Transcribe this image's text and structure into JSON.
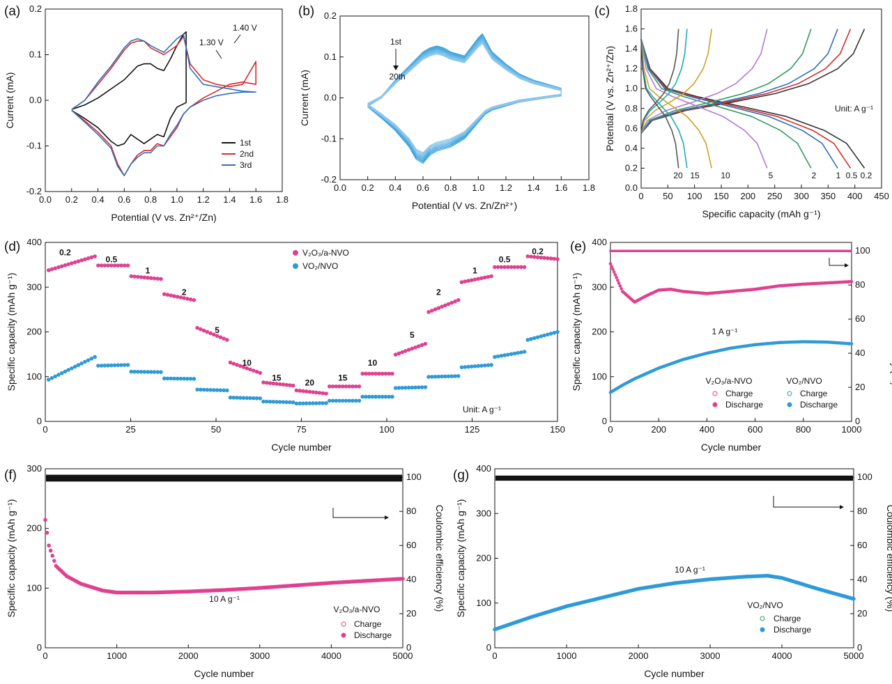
{
  "chart_data": [
    {
      "panel": "(a)",
      "type": "line",
      "xlabel": "Potential (V vs. Zn²⁺/Zn)",
      "ylabel": "Current (mA)",
      "xlim": [
        0.0,
        1.8
      ],
      "ylim": [
        -0.2,
        0.2
      ],
      "xticks": [
        "0.0",
        "0.2",
        "0.4",
        "0.6",
        "0.8",
        "1.0",
        "1.2",
        "1.4",
        "1.6",
        "1.8"
      ],
      "yticks": [
        "-0.2",
        "-0.1",
        "0.0",
        "0.1",
        "0.2"
      ],
      "legend_position": "bottom-right",
      "annotations": [
        "1.30 V",
        "1.40 V"
      ],
      "series": [
        {
          "name": "1st",
          "color": "#111111",
          "x": [
            0.2,
            0.3,
            0.4,
            0.5,
            0.6,
            0.65,
            0.7,
            0.75,
            0.8,
            0.85,
            0.9,
            0.95,
            1.0,
            1.05,
            1.07,
            1.07,
            1.0,
            0.95,
            0.9,
            0.85,
            0.8,
            0.75,
            0.7,
            0.65,
            0.6,
            0.55,
            0.5,
            0.4,
            0.3,
            0.2
          ],
          "y": [
            -0.02,
            -0.01,
            0.005,
            0.025,
            0.045,
            0.06,
            0.075,
            0.08,
            0.08,
            0.07,
            0.065,
            0.09,
            0.12,
            0.145,
            0.15,
            -0.005,
            -0.015,
            -0.04,
            -0.08,
            -0.075,
            -0.085,
            -0.095,
            -0.085,
            -0.075,
            -0.095,
            -0.1,
            -0.09,
            -0.06,
            -0.04,
            -0.022
          ]
        },
        {
          "name": "2nd",
          "color": "#d42a2a",
          "x": [
            0.2,
            0.3,
            0.4,
            0.5,
            0.6,
            0.65,
            0.7,
            0.75,
            0.8,
            0.9,
            1.0,
            1.05,
            1.1,
            1.2,
            1.3,
            1.4,
            1.5,
            1.6,
            1.6,
            1.5,
            1.4,
            1.3,
            1.2,
            1.1,
            1.05,
            1.0,
            0.95,
            0.9,
            0.85,
            0.8,
            0.75,
            0.7,
            0.65,
            0.6,
            0.55,
            0.5,
            0.4,
            0.3,
            0.2
          ],
          "y": [
            -0.02,
            0.0,
            0.035,
            0.07,
            0.11,
            0.125,
            0.13,
            0.13,
            0.115,
            0.1,
            0.12,
            0.14,
            0.08,
            0.045,
            0.035,
            0.03,
            0.035,
            0.085,
            0.035,
            0.04,
            0.035,
            0.02,
            0.005,
            -0.015,
            -0.03,
            -0.06,
            -0.08,
            -0.1,
            -0.095,
            -0.11,
            -0.11,
            -0.12,
            -0.14,
            -0.165,
            -0.14,
            -0.1,
            -0.07,
            -0.045,
            -0.022
          ]
        },
        {
          "name": "3rd",
          "color": "#2f6fb8",
          "x": [
            0.2,
            0.3,
            0.4,
            0.5,
            0.6,
            0.65,
            0.7,
            0.75,
            0.8,
            0.9,
            1.0,
            1.05,
            1.1,
            1.2,
            1.3,
            1.4,
            1.5,
            1.6,
            1.6,
            1.5,
            1.4,
            1.3,
            1.2,
            1.1,
            1.05,
            1.0,
            0.95,
            0.9,
            0.85,
            0.8,
            0.75,
            0.7,
            0.65,
            0.6,
            0.55,
            0.5,
            0.4,
            0.3,
            0.2
          ],
          "y": [
            -0.02,
            0.0,
            0.04,
            0.075,
            0.115,
            0.13,
            0.135,
            0.13,
            0.12,
            0.105,
            0.135,
            0.145,
            0.07,
            0.035,
            0.03,
            0.025,
            0.02,
            0.018,
            0.018,
            0.018,
            0.015,
            0.01,
            0.0,
            -0.015,
            -0.03,
            -0.055,
            -0.075,
            -0.1,
            -0.1,
            -0.115,
            -0.115,
            -0.125,
            -0.14,
            -0.165,
            -0.145,
            -0.105,
            -0.075,
            -0.048,
            -0.022
          ]
        }
      ]
    },
    {
      "panel": "(b)",
      "type": "line",
      "xlabel": "Potential (V vs. Zn/Zn²⁺)",
      "ylabel": "Current (mA)",
      "xlim": [
        0.0,
        1.8
      ],
      "ylim": [
        -0.2,
        0.2
      ],
      "xticks": [
        "0.0",
        "0.2",
        "0.4",
        "0.6",
        "0.8",
        "1.0",
        "1.2",
        "1.4",
        "1.6",
        "1.8"
      ],
      "yticks": [
        "-0.2",
        "-0.1",
        "0.0",
        "0.1",
        "0.2"
      ],
      "annotations": [
        "1st",
        "20th"
      ],
      "series_description": "20 overlapping CV cycles, light blue shades",
      "base_loop": {
        "x": [
          0.2,
          0.3,
          0.4,
          0.5,
          0.6,
          0.65,
          0.7,
          0.75,
          0.8,
          0.9,
          1.0,
          1.03,
          1.1,
          1.2,
          1.3,
          1.4,
          1.5,
          1.6,
          1.6,
          1.5,
          1.4,
          1.3,
          1.2,
          1.1,
          1.05,
          1.0,
          0.95,
          0.9,
          0.85,
          0.8,
          0.75,
          0.7,
          0.65,
          0.6,
          0.55,
          0.5,
          0.4,
          0.3,
          0.2
        ],
        "y": [
          -0.02,
          0.0,
          0.04,
          0.075,
          0.11,
          0.12,
          0.125,
          0.12,
          0.11,
          0.1,
          0.145,
          0.155,
          0.11,
          0.08,
          0.055,
          0.04,
          0.03,
          0.02,
          0.005,
          0.0,
          -0.005,
          -0.01,
          -0.02,
          -0.03,
          -0.04,
          -0.06,
          -0.08,
          -0.1,
          -0.11,
          -0.12,
          -0.125,
          -0.13,
          -0.14,
          -0.16,
          -0.15,
          -0.12,
          -0.08,
          -0.05,
          -0.022
        ]
      }
    },
    {
      "panel": "(c)",
      "type": "line",
      "xlabel": "Specific capacity (mAh g⁻¹)",
      "ylabel": "Potential (V vs. Zn²⁺/Zn)",
      "xlim": [
        0,
        450
      ],
      "ylim": [
        0.0,
        1.8
      ],
      "xticks": [
        "0",
        "50",
        "100",
        "150",
        "200",
        "250",
        "300",
        "350",
        "400",
        "450"
      ],
      "yticks": [
        "0.0",
        "0.2",
        "0.4",
        "0.6",
        "0.8",
        "1.0",
        "1.2",
        "1.4",
        "1.6",
        "1.8"
      ],
      "unit_label": "Unit: A g⁻¹",
      "series": [
        {
          "name": "0.2",
          "color": "#333333",
          "capacity": 418
        },
        {
          "name": "0.5",
          "color": "#d42a2a",
          "capacity": 392
        },
        {
          "name": "1",
          "color": "#2f6fb8",
          "capacity": 368
        },
        {
          "name": "2",
          "color": "#2e9b5f",
          "capacity": 318
        },
        {
          "name": "5",
          "color": "#b07ad6",
          "capacity": 236
        },
        {
          "name": "10",
          "color": "#c9a227",
          "capacity": 132
        },
        {
          "name": "15",
          "color": "#20a8b8",
          "capacity": 86
        },
        {
          "name": "20",
          "color": "#555555",
          "capacity": 70
        }
      ]
    },
    {
      "panel": "(d)",
      "type": "scatter",
      "xlabel": "Cycle number",
      "ylabel": "Specific capacity (mAh g⁻¹)",
      "xlim": [
        0,
        155
      ],
      "ylim": [
        0,
        450
      ],
      "xticks": [
        "0",
        "25",
        "50",
        "75",
        "100",
        "125",
        "150"
      ],
      "yticks": [
        "0",
        "100",
        "200",
        "300",
        "400"
      ],
      "unit_label": "Unit: A g⁻¹",
      "rate_labels": [
        {
          "t": "0.2",
          "x": 6,
          "y": 418
        },
        {
          "t": "0.5",
          "x": 20,
          "y": 400
        },
        {
          "t": "1",
          "x": 31,
          "y": 372
        },
        {
          "t": "2",
          "x": 42,
          "y": 318
        },
        {
          "t": "5",
          "x": 52,
          "y": 222
        },
        {
          "t": "10",
          "x": 61,
          "y": 140
        },
        {
          "t": "15",
          "x": 70,
          "y": 102
        },
        {
          "t": "20",
          "x": 80,
          "y": 90
        },
        {
          "t": "15",
          "x": 90,
          "y": 102
        },
        {
          "t": "10",
          "x": 99,
          "y": 140
        },
        {
          "t": "5",
          "x": 111,
          "y": 210
        },
        {
          "t": "2",
          "x": 119,
          "y": 318
        },
        {
          "t": "1",
          "x": 130,
          "y": 372
        },
        {
          "t": "0.5",
          "x": 139,
          "y": 400
        },
        {
          "t": "0.2",
          "x": 149,
          "y": 420
        }
      ],
      "series": [
        {
          "name": "V₂O₃/a-NVO",
          "color": "#e0408f",
          "segments": [
            [
              380,
              415
            ],
            [
              392,
              392
            ],
            [
              365,
              358
            ],
            [
              320,
              305
            ],
            [
              235,
              205
            ],
            [
              148,
              122
            ],
            [
              98,
              90
            ],
            [
              78,
              70
            ],
            [
              88,
              88
            ],
            [
              120,
              120
            ],
            [
              168,
              195
            ],
            [
              275,
              305
            ],
            [
              350,
              365
            ],
            [
              388,
              388
            ],
            [
              415,
              408
            ]
          ]
        },
        {
          "name": "VO₂/NVO",
          "color": "#2f9ad8",
          "segments": [
            [
              105,
              162
            ],
            [
              140,
              142
            ],
            [
              125,
              124
            ],
            [
              108,
              107
            ],
            [
              80,
              78
            ],
            [
              60,
              58
            ],
            [
              50,
              48
            ],
            [
              45,
              46
            ],
            [
              52,
              52
            ],
            [
              62,
              62
            ],
            [
              84,
              86
            ],
            [
              112,
              114
            ],
            [
              136,
              142
            ],
            [
              162,
              175
            ],
            [
              205,
              225
            ]
          ]
        }
      ]
    },
    {
      "panel": "(e)",
      "type": "scatter",
      "xlabel": "Cycle number",
      "ylabel": "Specific capacity (mAh g⁻¹)",
      "y2label": "Coulombic efficiency (%)",
      "xlim": [
        0,
        1000
      ],
      "ylim": [
        0,
        420
      ],
      "y2lim": [
        0,
        105
      ],
      "xticks": [
        "0",
        "200",
        "400",
        "600",
        "800",
        "1000"
      ],
      "yticks": [
        "0",
        "100",
        "200",
        "300",
        "400"
      ],
      "y2ticks": [
        "0",
        "20",
        "40",
        "60",
        "80",
        "100"
      ],
      "rate_label": "1 A g⁻¹",
      "legend": {
        "group1": "V₂O₃/a-NVO",
        "group2": "VO₂/NVO",
        "charge": "Charge",
        "discharge": "Discharge"
      },
      "series": [
        {
          "name": "V₂O₃/a-NVO",
          "color": "#e0408f",
          "x": [
            0,
            50,
            100,
            150,
            200,
            250,
            300,
            400,
            500,
            600,
            700,
            800,
            900,
            1000
          ],
          "y": [
            370,
            305,
            280,
            295,
            308,
            310,
            305,
            300,
            305,
            310,
            318,
            322,
            325,
            328
          ]
        },
        {
          "name": "VO₂/NVO",
          "color": "#2f9ad8",
          "x": [
            0,
            50,
            100,
            200,
            300,
            400,
            500,
            600,
            700,
            800,
            900,
            1000
          ],
          "y": [
            68,
            85,
            100,
            125,
            145,
            160,
            172,
            180,
            185,
            187,
            186,
            182
          ]
        },
        {
          "name": "Coulombic efficiency",
          "color": "#e0408f",
          "x": [
            0,
            1000
          ],
          "y": [
            100,
            100
          ]
        }
      ]
    },
    {
      "panel": "(f)",
      "type": "scatter",
      "xlabel": "Cycle number",
      "ylabel": "Specific capacity (mAh g⁻¹)",
      "y2label": "Coulombic efficiency (%)",
      "xlim": [
        0,
        5000
      ],
      "ylim": [
        0,
        350
      ],
      "y2lim": [
        0,
        105
      ],
      "xticks": [
        "0",
        "1000",
        "2000",
        "3000",
        "4000",
        "5000"
      ],
      "yticks": [
        "0",
        "100",
        "200",
        "300"
      ],
      "y2ticks": [
        "0",
        "20",
        "40",
        "60",
        "80",
        "100"
      ],
      "rate_label": "10 A g⁻¹",
      "legend": {
        "group": "V₂O₃/a-NVO",
        "charge": "Charge",
        "discharge": "Discharge"
      },
      "series": [
        {
          "name": "V₂O₃/a-NVO",
          "color": "#e0408f",
          "x": [
            0,
            50,
            150,
            300,
            500,
            800,
            1000,
            1500,
            2000,
            2500,
            3000,
            3500,
            4000,
            4500,
            5000
          ],
          "y": [
            250,
            200,
            160,
            140,
            125,
            112,
            108,
            108,
            110,
            113,
            117,
            122,
            127,
            131,
            135
          ]
        },
        {
          "name": "Coulombic efficiency",
          "color": "#111111",
          "x": [
            0,
            5000
          ],
          "y": [
            100,
            100
          ]
        }
      ]
    },
    {
      "panel": "(g)",
      "type": "scatter",
      "xlabel": "Cycle number",
      "ylabel": "Specific capacity (mAh g⁻¹)",
      "y2label": "Coulombic efficiency (%)",
      "xlim": [
        0,
        5000
      ],
      "ylim": [
        0,
        410
      ],
      "y2lim": [
        0,
        105
      ],
      "xticks": [
        "0",
        "1000",
        "2000",
        "3000",
        "4000",
        "5000"
      ],
      "yticks": [
        "0",
        "100",
        "200",
        "300",
        "400"
      ],
      "y2ticks": [
        "0",
        "20",
        "40",
        "60",
        "80",
        "100"
      ],
      "rate_label": "10 A g⁻¹",
      "legend": {
        "group": "VO₂/NVO",
        "charge": "Charge",
        "discharge": "Discharge"
      },
      "series": [
        {
          "name": "VO₂/NVO",
          "color": "#2f9ad8",
          "x": [
            0,
            500,
            1000,
            1500,
            2000,
            2500,
            3000,
            3500,
            3800,
            4000,
            4500,
            5000
          ],
          "y": [
            42,
            70,
            95,
            115,
            135,
            148,
            157,
            163,
            165,
            160,
            135,
            112
          ]
        },
        {
          "name": "Coulombic efficiency",
          "color": "#111111",
          "x": [
            0,
            5000
          ],
          "y": [
            100,
            100
          ]
        }
      ]
    }
  ]
}
